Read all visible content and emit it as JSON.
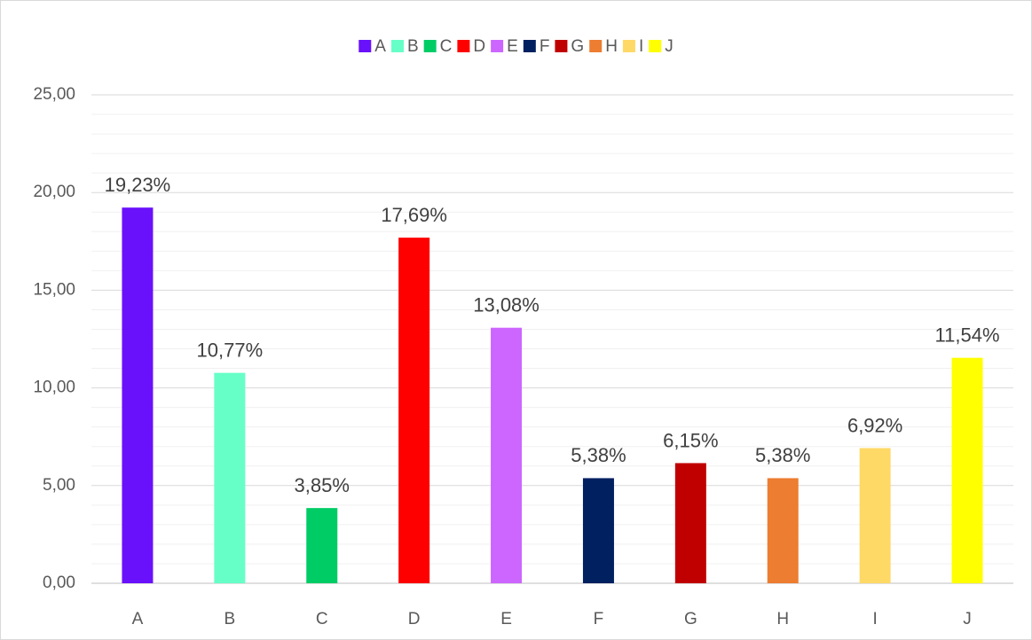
{
  "chart_data": {
    "type": "bar",
    "categories": [
      "A",
      "B",
      "C",
      "D",
      "E",
      "F",
      "G",
      "H",
      "I",
      "J"
    ],
    "values": [
      19.23,
      10.77,
      3.85,
      17.69,
      13.08,
      5.38,
      6.15,
      5.38,
      6.92,
      11.54
    ],
    "value_labels": [
      "19,23%",
      "10,77%",
      "3,85%",
      "17,69%",
      "13,08%",
      "5,38%",
      "6,15%",
      "5,38%",
      "6,92%",
      "11,54%"
    ],
    "colors": [
      "#6a11fb",
      "#66ffc7",
      "#00cc66",
      "#ff0000",
      "#cc66ff",
      "#002060",
      "#c00000",
      "#ed7d31",
      "#ffd966",
      "#ffff00"
    ],
    "ylim": [
      0,
      25
    ],
    "yticks": [
      {
        "value": 0,
        "label": "0,00"
      },
      {
        "value": 5,
        "label": "5,00"
      },
      {
        "value": 10,
        "label": "10,00"
      },
      {
        "value": 15,
        "label": "15,00"
      },
      {
        "value": 20,
        "label": "20,00"
      },
      {
        "value": 25,
        "label": "25,00"
      }
    ],
    "minor_yticks": [
      1,
      2,
      3,
      4,
      6,
      7,
      8,
      9,
      11,
      12,
      13,
      14,
      16,
      17,
      18,
      19,
      21,
      22,
      23,
      24
    ],
    "grid": true,
    "legend": "top"
  }
}
